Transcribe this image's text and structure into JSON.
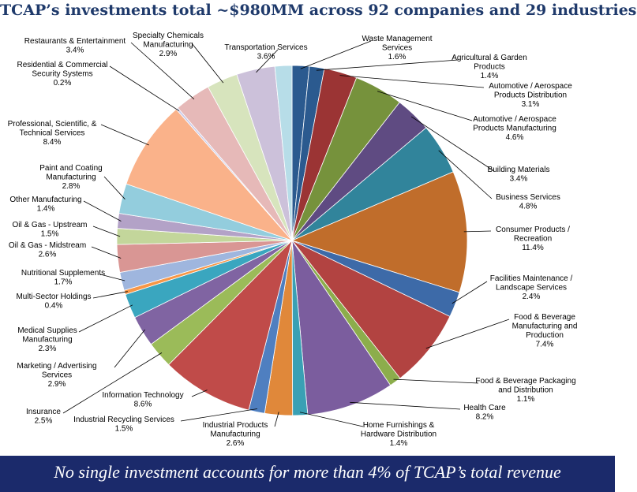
{
  "title": "TCAP’s investments total ~$980MM across 92 companies and 29 industries",
  "footer": "No single investment accounts for more than 4% of TCAP’s total revenue",
  "chart_data": {
    "type": "pie",
    "title": "TCAP’s investments total ~$980MM across 92 companies and 29 industries",
    "slices": [
      {
        "name": "Waste Management Services",
        "value": 1.6,
        "color": "#2b5a8f"
      },
      {
        "name": "Agricultural & Garden Products",
        "value": 1.4,
        "color": "#2b5a8f"
      },
      {
        "name": "Automotive / Aerospace Products Distribution",
        "value": 3.1,
        "color": "#9b3434"
      },
      {
        "name": "Automotive / Aerospace Products Manufacturing",
        "value": 4.6,
        "color": "#76923c"
      },
      {
        "name": "Building Materials",
        "value": 3.4,
        "color": "#5f4b82"
      },
      {
        "name": "Business Services",
        "value": 4.8,
        "color": "#31849b"
      },
      {
        "name": "Consumer Products / Recreation",
        "value": 11.4,
        "color": "#c06d2b"
      },
      {
        "name": "Facilities Maintenance / Landscape Services",
        "value": 2.4,
        "color": "#3d6aa8"
      },
      {
        "name": "Food & Beverage Manufacturing and Production",
        "value": 7.4,
        "color": "#b24341"
      },
      {
        "name": "Food & Beverage Packaging and Distribution",
        "value": 1.1,
        "color": "#8cad4c"
      },
      {
        "name": "Health Care",
        "value": 8.2,
        "color": "#7b5d9e"
      },
      {
        "name": "Home Furnishings & Hardware Distribution",
        "value": 1.4,
        "color": "#3aa0b4"
      },
      {
        "name": "Industrial Products Manufacturing",
        "value": 2.6,
        "color": "#e0883a"
      },
      {
        "name": "Industrial Recycling Services",
        "value": 1.5,
        "color": "#4f7fc0"
      },
      {
        "name": "Information Technology",
        "value": 8.6,
        "color": "#c04b49"
      },
      {
        "name": "Insurance",
        "value": 2.5,
        "color": "#9bbb59"
      },
      {
        "name": "Marketing / Advertising Services",
        "value": 2.9,
        "color": "#8064a2"
      },
      {
        "name": "Medical Supplies Manufacturing",
        "value": 2.3,
        "color": "#3aa6bf"
      },
      {
        "name": "Multi-Sector Holdings",
        "value": 0.4,
        "color": "#f79646"
      },
      {
        "name": "Nutritional Supplements",
        "value": 1.7,
        "color": "#9fb6de"
      },
      {
        "name": "Oil & Gas - Midstream",
        "value": 2.6,
        "color": "#d99694"
      },
      {
        "name": "Oil & Gas - Upstream",
        "value": 1.5,
        "color": "#c3d69b"
      },
      {
        "name": "Other Manufacturing",
        "value": 1.4,
        "color": "#b3a2c7"
      },
      {
        "name": "Paint and Coating Manufacturing",
        "value": 2.8,
        "color": "#93cddd"
      },
      {
        "name": "Professional, Scientific, & Technical Services",
        "value": 8.4,
        "color": "#fab28a"
      },
      {
        "name": "Residential & Commercial Security Systems",
        "value": 0.2,
        "color": "#c9c9e8"
      },
      {
        "name": "Restaurants & Entertainment",
        "value": 3.4,
        "color": "#e6b9b8"
      },
      {
        "name": "Specialty Chemicals Manufacturing",
        "value": 2.9,
        "color": "#d7e4bd"
      },
      {
        "name": "Transportation Services",
        "value": 3.6,
        "color": "#ccc1da"
      },
      {
        "name": "Unlabeled (light blue)",
        "value": 1.6,
        "color": "#b7dde8"
      }
    ],
    "labels": [
      {
        "text": [
          "Waste Management",
          "Services",
          "1.6%"
        ]
      },
      {
        "text": [
          "Agricultural & Garden",
          "Products",
          "1.4%"
        ]
      },
      {
        "text": [
          "Automotive / Aerospace",
          "Products Distribution",
          "3.1%"
        ]
      },
      {
        "text": [
          "Automotive / Aerospace",
          "Products Manufacturing",
          "4.6%"
        ]
      },
      {
        "text": [
          "Building Materials",
          "3.4%"
        ]
      },
      {
        "text": [
          "Business Services",
          "4.8%"
        ]
      },
      {
        "text": [
          "Consumer Products /",
          "Recreation",
          "11.4%"
        ]
      },
      {
        "text": [
          "Facilities Maintenance /",
          "Landscape Services",
          "2.4%"
        ]
      },
      {
        "text": [
          "Food & Beverage",
          "Manufacturing and",
          "Production",
          "7.4%"
        ]
      },
      {
        "text": [
          "Food & Beverage Packaging",
          "and Distribution",
          "1.1%"
        ]
      },
      {
        "text": [
          "Health Care",
          "8.2%"
        ]
      },
      {
        "text": [
          "Home Furnishings &",
          "Hardware Distribution",
          "1.4%"
        ]
      },
      {
        "text": [
          "Industrial Products",
          "Manufacturing",
          "2.6%"
        ]
      },
      {
        "text": [
          "Industrial Recycling Services",
          "1.5%"
        ]
      },
      {
        "text": [
          "Information Technology",
          "8.6%"
        ]
      },
      {
        "text": [
          "Insurance",
          "2.5%"
        ]
      },
      {
        "text": [
          "Marketing / Advertising",
          "Services",
          "2.9%"
        ]
      },
      {
        "text": [
          "Medical Supplies",
          "Manufacturing",
          "2.3%"
        ]
      },
      {
        "text": [
          "Multi-Sector Holdings",
          "0.4%"
        ]
      },
      {
        "text": [
          "Nutritional Supplements",
          "1.7%"
        ]
      },
      {
        "text": [
          "Oil & Gas - Midstream",
          "2.6%"
        ]
      },
      {
        "text": [
          "Oil & Gas - Upstream",
          "1.5%"
        ]
      },
      {
        "text": [
          "Other Manufacturing",
          "1.4%"
        ]
      },
      {
        "text": [
          "Paint and Coating",
          "Manufacturing",
          "2.8%"
        ]
      },
      {
        "text": [
          "Professional, Scientific, &",
          "Technical Services",
          "8.4%"
        ]
      },
      {
        "text": [
          "Residential & Commercial",
          "Security Systems",
          "0.2%"
        ]
      },
      {
        "text": [
          "Restaurants & Entertainment",
          "3.4%"
        ]
      },
      {
        "text": [
          "Specialty Chemicals",
          "Manufacturing",
          "2.9%"
        ]
      },
      {
        "text": [
          "Transportation Services",
          "3.6%"
        ]
      }
    ]
  }
}
